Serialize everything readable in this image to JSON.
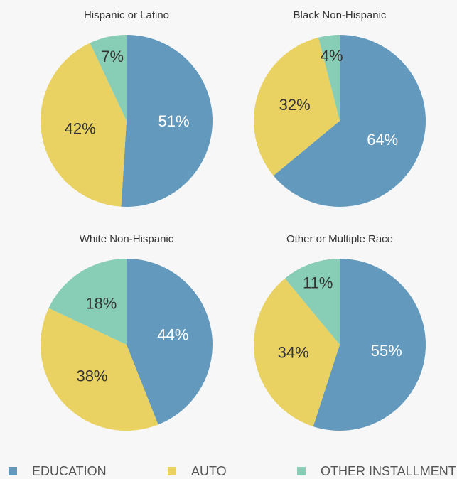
{
  "chart_data": [
    {
      "type": "pie",
      "title": "Hispanic or Latino",
      "values": [
        51,
        42,
        7
      ],
      "value_labels": [
        "51%",
        "42%",
        "7%"
      ]
    },
    {
      "type": "pie",
      "title": "Black Non-Hispanic",
      "values": [
        64,
        32,
        4
      ],
      "value_labels": [
        "64%",
        "32%",
        "4%"
      ]
    },
    {
      "type": "pie",
      "title": "White Non-Hispanic",
      "values": [
        44,
        38,
        18
      ],
      "value_labels": [
        "44%",
        "38%",
        "18%"
      ]
    },
    {
      "type": "pie",
      "title": "Other or Multiple Race",
      "values": [
        55,
        34,
        11
      ],
      "value_labels": [
        "55%",
        "34%",
        "11%"
      ]
    }
  ],
  "legend": [
    {
      "name": "EDUCATION",
      "color": "#6399bd"
    },
    {
      "name": "AUTO",
      "color": "#e9d162"
    },
    {
      "name": "OTHER INSTALLMENT",
      "color": "#88cdb6"
    }
  ]
}
